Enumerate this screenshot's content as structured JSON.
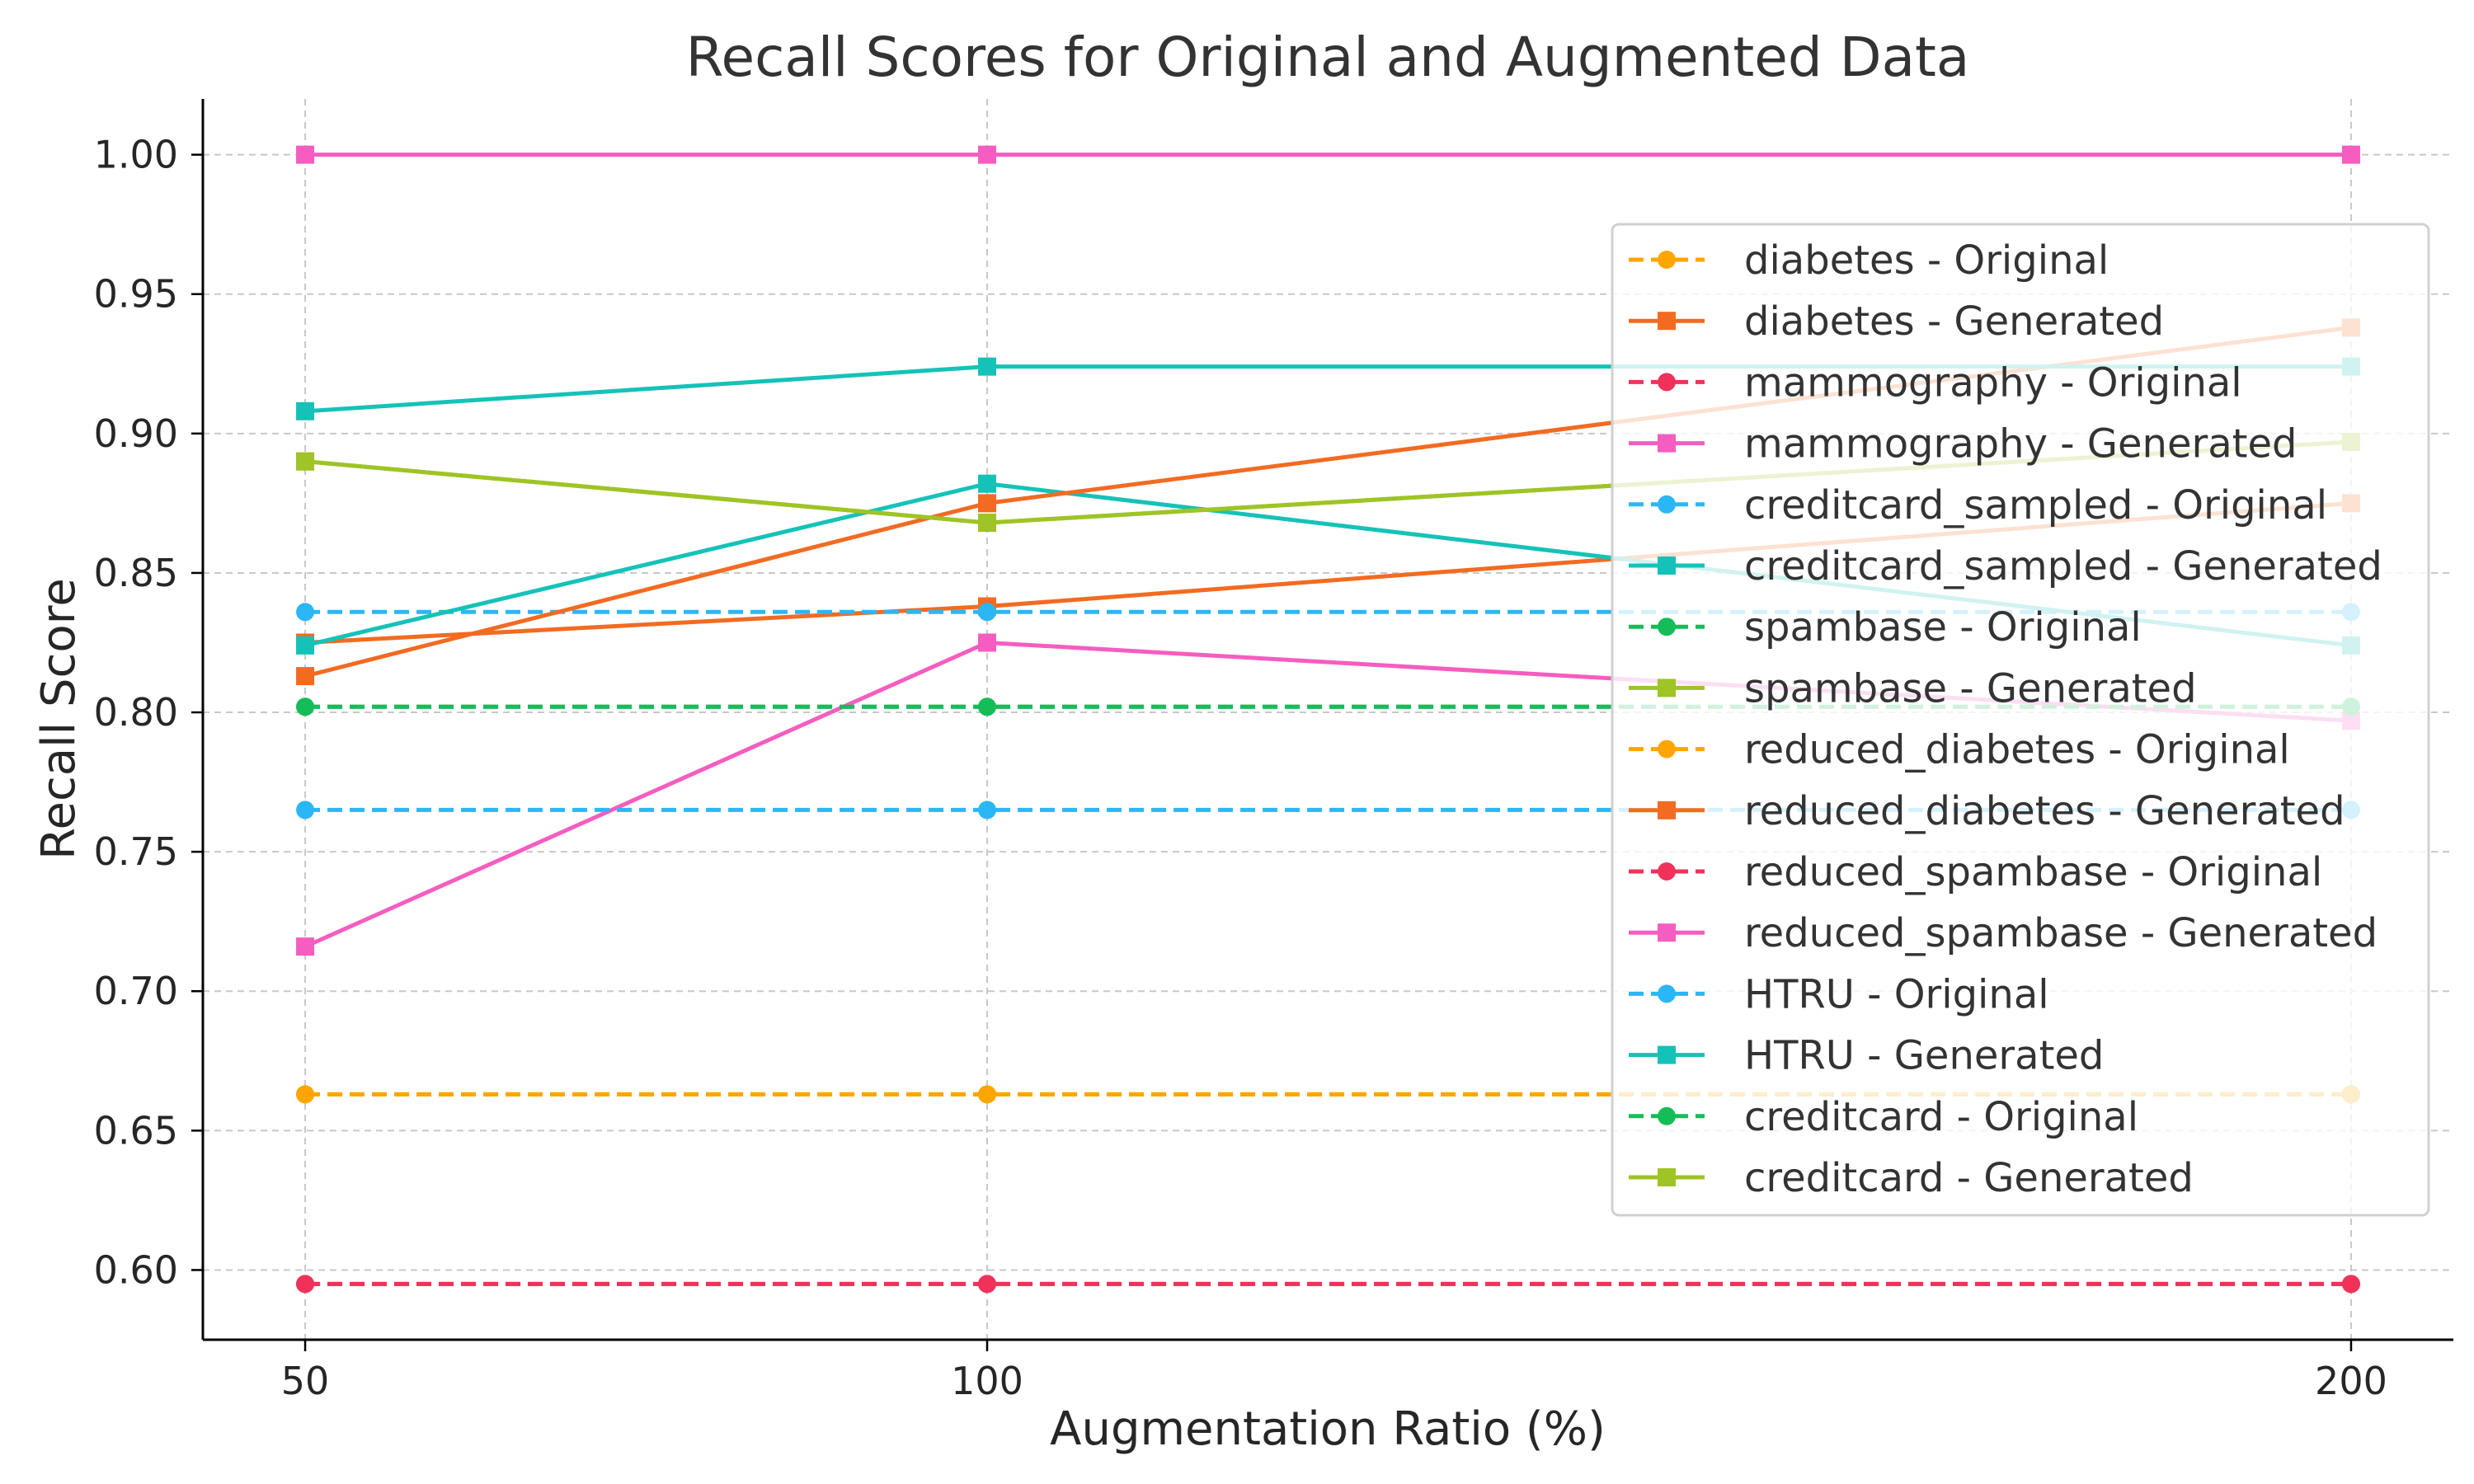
{
  "chart_data": {
    "type": "line",
    "title": "Recall Scores for Original and Augmented Data",
    "xlabel": "Augmentation Ratio (%)",
    "ylabel": "Recall Score",
    "x": [
      50,
      100,
      200
    ],
    "x_ticks": [
      "50",
      "100",
      "200"
    ],
    "y_ticks": [
      "0.60",
      "0.65",
      "0.70",
      "0.75",
      "0.80",
      "0.85",
      "0.90",
      "0.95",
      "1.00"
    ],
    "xlim": [
      42.5,
      207.5
    ],
    "ylim": [
      0.575,
      1.02
    ],
    "grid": true,
    "legend_position": "upper-right",
    "series": [
      {
        "name": "diabetes - Original",
        "values": [
          0.663,
          0.663,
          0.663
        ],
        "color": "#ffa500",
        "dashed": true,
        "marker": "circle"
      },
      {
        "name": "diabetes - Generated",
        "values": [
          0.825,
          0.838,
          0.875
        ],
        "color": "#f26b21",
        "dashed": false,
        "marker": "square"
      },
      {
        "name": "mammography - Original",
        "values": [
          0.595,
          0.595,
          0.595
        ],
        "color": "#f0325a",
        "dashed": true,
        "marker": "circle"
      },
      {
        "name": "mammography - Generated",
        "values": [
          1.0,
          1.0,
          1.0
        ],
        "color": "#f55dc0",
        "dashed": false,
        "marker": "square"
      },
      {
        "name": "creditcard_sampled - Original",
        "values": [
          0.836,
          0.836,
          0.836
        ],
        "color": "#2bb7f5",
        "dashed": true,
        "marker": "circle"
      },
      {
        "name": "creditcard_sampled - Generated",
        "values": [
          0.824,
          0.882,
          0.824
        ],
        "color": "#15c2b8",
        "dashed": false,
        "marker": "square"
      },
      {
        "name": "spambase - Original",
        "values": [
          0.802,
          0.802,
          0.802
        ],
        "color": "#14bd58",
        "dashed": true,
        "marker": "circle"
      },
      {
        "name": "spambase - Generated",
        "values": [
          0.89,
          0.868,
          0.897
        ],
        "color": "#9ec425",
        "dashed": false,
        "marker": "square"
      },
      {
        "name": "reduced_diabetes - Original",
        "values": [
          0.663,
          0.663,
          0.663
        ],
        "color": "#ffa500",
        "dashed": true,
        "marker": "circle"
      },
      {
        "name": "reduced_diabetes - Generated",
        "values": [
          0.813,
          0.875,
          0.938
        ],
        "color": "#f26b21",
        "dashed": false,
        "marker": "square"
      },
      {
        "name": "reduced_spambase - Original",
        "values": [
          0.595,
          0.595,
          0.595
        ],
        "color": "#f0325a",
        "dashed": true,
        "marker": "circle"
      },
      {
        "name": "reduced_spambase - Generated",
        "values": [
          0.716,
          0.825,
          0.797
        ],
        "color": "#f55dc0",
        "dashed": false,
        "marker": "square"
      },
      {
        "name": "HTRU - Original",
        "values": [
          0.765,
          0.765,
          0.765
        ],
        "color": "#2bb7f5",
        "dashed": true,
        "marker": "circle"
      },
      {
        "name": "HTRU - Generated",
        "values": [
          0.908,
          0.924,
          0.924
        ],
        "color": "#15c2b8",
        "dashed": false,
        "marker": "square"
      },
      {
        "name": "creditcard - Original",
        "values": [
          0.802,
          0.802,
          0.802
        ],
        "color": "#14bd58",
        "dashed": true,
        "marker": "circle"
      },
      {
        "name": "creditcard - Generated",
        "values": [
          0.89,
          0.868,
          0.897
        ],
        "color": "#9ec425",
        "dashed": false,
        "marker": "square"
      }
    ]
  }
}
